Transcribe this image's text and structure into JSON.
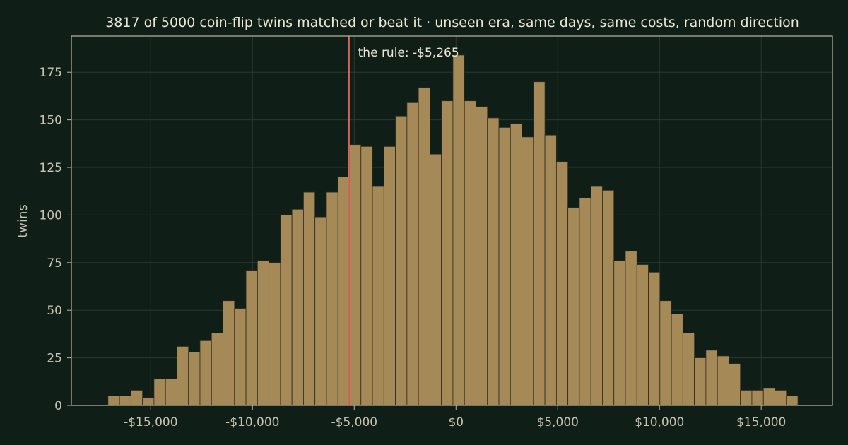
{
  "chart_data": {
    "type": "bar",
    "title": "3817 of 5000 coin-flip twins matched or beat it  ·  unseen era, same days, same costs, random direction",
    "xlabel": "",
    "ylabel": "twins",
    "xlim": [
      -18900,
      18500
    ],
    "ylim": [
      0,
      194
    ],
    "grid": true,
    "x_ticks": [
      {
        "value": -15000,
        "label": "-$15,000"
      },
      {
        "value": -10000,
        "label": "-$10,000"
      },
      {
        "value": -5000,
        "label": "-$5,000"
      },
      {
        "value": 0,
        "label": "$0"
      },
      {
        "value": 5000,
        "label": "$5,000"
      },
      {
        "value": 10000,
        "label": "$10,000"
      },
      {
        "value": 15000,
        "label": "$15,000"
      }
    ],
    "y_ticks": [
      0,
      25,
      50,
      75,
      100,
      125,
      150,
      175
    ],
    "bin_start": -17100,
    "bin_width": 565,
    "values": [
      5,
      5,
      8,
      4,
      14,
      14,
      31,
      28,
      34,
      38,
      55,
      51,
      71,
      76,
      75,
      100,
      103,
      112,
      99,
      112,
      120,
      137,
      136,
      115,
      136,
      152,
      159,
      167,
      132,
      160,
      184,
      160,
      157,
      151,
      146,
      148,
      141,
      170,
      142,
      128,
      104,
      109,
      115,
      113,
      76,
      81,
      74,
      70,
      55,
      48,
      38,
      25,
      29,
      26,
      22,
      8,
      8,
      9,
      8,
      5
    ],
    "rule_line": {
      "value": -5265,
      "label": "the rule: -$5,265"
    },
    "bar_color": "#a58a57",
    "line_color": "#d4675a"
  }
}
